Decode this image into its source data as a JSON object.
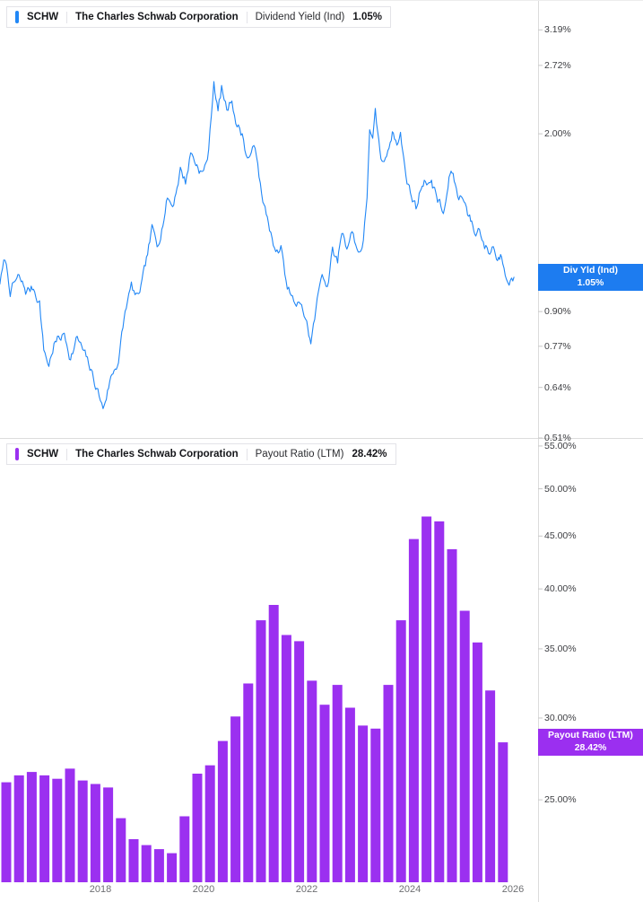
{
  "top_chart": {
    "legend": {
      "ticker": "SCHW",
      "company": "The Charles Schwab Corporation",
      "metric": "Dividend Yield (Ind)",
      "value": "1.05%"
    },
    "badge": {
      "line1": "Div Yld (Ind)",
      "line2": "1.05%"
    },
    "color": "#2187f6",
    "badge_color": "#1d7cf0"
  },
  "bottom_chart": {
    "legend": {
      "ticker": "SCHW",
      "company": "The Charles Schwab Corporation",
      "metric": "Payout Ratio (LTM)",
      "value": "28.42%"
    },
    "badge": {
      "line1": "Payout Ratio (LTM)",
      "line2": "28.42%"
    },
    "color": "#9b30f0",
    "badge_color": "#9b2ff0"
  },
  "chart_data": [
    {
      "type": "line",
      "ticker": "SCHW",
      "title": "Dividend Yield (Ind)",
      "current_value": 1.05,
      "color": "#2187f6",
      "y_scale": "log",
      "grid": false,
      "legend_position": "top-left",
      "y_ticks": [
        3.19,
        2.72,
        2.0,
        1.0,
        0.9,
        0.77,
        0.64,
        0.51
      ],
      "x_ticks": [
        2018,
        2020,
        2022,
        2024,
        2026
      ],
      "x_range": [
        2016.05,
        2026.5
      ],
      "y_domain": [
        0.48,
        3.4
      ],
      "points": [
        [
          2016.05,
          1.03
        ],
        [
          2016.15,
          1.13
        ],
        [
          2016.25,
          0.99
        ],
        [
          2016.4,
          1.04
        ],
        [
          2016.55,
          0.98
        ],
        [
          2016.7,
          1.0
        ],
        [
          2016.82,
          0.95
        ],
        [
          2016.9,
          0.76
        ],
        [
          2017.0,
          0.71
        ],
        [
          2017.1,
          0.78
        ],
        [
          2017.3,
          0.81
        ],
        [
          2017.42,
          0.74
        ],
        [
          2017.55,
          0.8
        ],
        [
          2017.7,
          0.73
        ],
        [
          2017.82,
          0.68
        ],
        [
          2017.95,
          0.63
        ],
        [
          2018.05,
          0.58
        ],
        [
          2018.18,
          0.66
        ],
        [
          2018.35,
          0.73
        ],
        [
          2018.5,
          0.92
        ],
        [
          2018.6,
          1.0
        ],
        [
          2018.72,
          0.94
        ],
        [
          2018.85,
          1.05
        ],
        [
          2019.0,
          1.28
        ],
        [
          2019.1,
          1.2
        ],
        [
          2019.3,
          1.52
        ],
        [
          2019.4,
          1.45
        ],
        [
          2019.55,
          1.72
        ],
        [
          2019.65,
          1.62
        ],
        [
          2019.75,
          1.85
        ],
        [
          2019.85,
          1.76
        ],
        [
          2020.0,
          1.68
        ],
        [
          2020.1,
          1.85
        ],
        [
          2020.2,
          2.55
        ],
        [
          2020.28,
          2.22
        ],
        [
          2020.35,
          2.45
        ],
        [
          2020.45,
          2.22
        ],
        [
          2020.55,
          2.35
        ],
        [
          2020.65,
          2.1
        ],
        [
          2020.75,
          2.0
        ],
        [
          2020.85,
          1.8
        ],
        [
          2020.95,
          1.87
        ],
        [
          2021.05,
          1.78
        ],
        [
          2021.15,
          1.45
        ],
        [
          2021.28,
          1.32
        ],
        [
          2021.4,
          1.15
        ],
        [
          2021.5,
          1.2
        ],
        [
          2021.6,
          1.0
        ],
        [
          2021.7,
          0.96
        ],
        [
          2021.8,
          0.9
        ],
        [
          2021.9,
          0.93
        ],
        [
          2022.0,
          0.85
        ],
        [
          2022.08,
          0.78
        ],
        [
          2022.18,
          0.9
        ],
        [
          2022.3,
          1.08
        ],
        [
          2022.4,
          1.02
        ],
        [
          2022.5,
          1.18
        ],
        [
          2022.6,
          1.12
        ],
        [
          2022.68,
          1.3
        ],
        [
          2022.78,
          1.22
        ],
        [
          2022.88,
          1.3
        ],
        [
          2023.0,
          1.18
        ],
        [
          2023.1,
          1.24
        ],
        [
          2023.17,
          1.5
        ],
        [
          2023.22,
          2.08
        ],
        [
          2023.28,
          1.92
        ],
        [
          2023.33,
          2.15
        ],
        [
          2023.42,
          1.82
        ],
        [
          2023.48,
          1.72
        ],
        [
          2023.55,
          1.82
        ],
        [
          2023.62,
          1.98
        ],
        [
          2023.68,
          2.06
        ],
        [
          2023.75,
          1.92
        ],
        [
          2023.82,
          2.0
        ],
        [
          2023.9,
          1.72
        ],
        [
          2023.97,
          1.6
        ],
        [
          2024.05,
          1.5
        ],
        [
          2024.12,
          1.44
        ],
        [
          2024.2,
          1.56
        ],
        [
          2024.28,
          1.66
        ],
        [
          2024.35,
          1.58
        ],
        [
          2024.42,
          1.64
        ],
        [
          2024.5,
          1.53
        ],
        [
          2024.58,
          1.46
        ],
        [
          2024.65,
          1.38
        ],
        [
          2024.72,
          1.52
        ],
        [
          2024.8,
          1.7
        ],
        [
          2024.88,
          1.58
        ],
        [
          2024.95,
          1.5
        ],
        [
          2025.05,
          1.52
        ],
        [
          2025.12,
          1.42
        ],
        [
          2025.2,
          1.34
        ],
        [
          2025.28,
          1.27
        ],
        [
          2025.35,
          1.32
        ],
        [
          2025.45,
          1.22
        ],
        [
          2025.55,
          1.18
        ],
        [
          2025.62,
          1.22
        ],
        [
          2025.7,
          1.14
        ],
        [
          2025.78,
          1.17
        ],
        [
          2025.85,
          1.1
        ],
        [
          2025.95,
          1.07
        ],
        [
          2026.02,
          1.05
        ]
      ]
    },
    {
      "type": "bar",
      "ticker": "SCHW",
      "title": "Payout Ratio (LTM)",
      "current_value": 28.42,
      "color": "#9b30f0",
      "y_scale": "log",
      "grid": false,
      "legend_position": "top-left",
      "y_ticks": [
        55,
        50,
        45,
        40,
        35,
        30,
        25
      ],
      "x_ticks": [
        2018,
        2020,
        2022,
        2024,
        2026
      ],
      "y_domain": [
        21,
        57
      ],
      "categories": [
        "2016 Q1",
        "2016 Q2",
        "2016 Q3",
        "2016 Q4",
        "2017 Q1",
        "2017 Q2",
        "2017 Q3",
        "2017 Q4",
        "2018 Q1",
        "2018 Q2",
        "2018 Q3",
        "2018 Q4",
        "2019 Q1",
        "2019 Q2",
        "2019 Q3",
        "2019 Q4",
        "2020 Q1",
        "2020 Q2",
        "2020 Q3",
        "2020 Q4",
        "2021 Q1",
        "2021 Q2",
        "2021 Q3",
        "2021 Q4",
        "2022 Q1",
        "2022 Q2",
        "2022 Q3",
        "2022 Q4",
        "2023 Q1",
        "2023 Q2",
        "2023 Q3",
        "2023 Q4",
        "2024 Q1",
        "2024 Q2",
        "2024 Q3",
        "2024 Q4",
        "2025 Q1",
        "2025 Q2",
        "2025 Q3",
        "2025 Q4"
      ],
      "values": [
        26.0,
        26.4,
        26.6,
        26.4,
        26.2,
        26.8,
        26.1,
        25.9,
        25.7,
        24.0,
        22.9,
        22.6,
        22.4,
        22.2,
        24.1,
        26.5,
        27.0,
        28.5,
        30.1,
        32.4,
        37.3,
        38.6,
        36.1,
        35.6,
        32.6,
        30.9,
        32.3,
        30.7,
        29.5,
        29.3,
        32.3,
        37.3,
        44.7,
        47.0,
        46.5,
        43.7,
        38.1,
        35.5,
        31.9,
        28.42
      ]
    }
  ]
}
